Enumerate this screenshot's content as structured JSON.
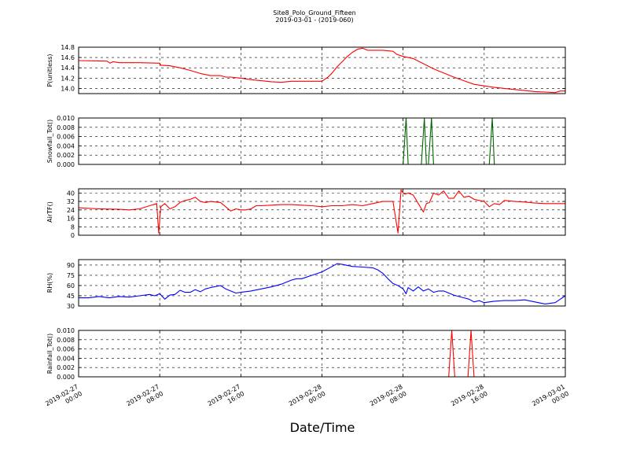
{
  "figure": {
    "title": "Site8_Polo_Ground_Fifteen",
    "subtitle": "2019-03-01 - (2019-060)",
    "xlabel": "Date/Time"
  },
  "chart_data": [
    {
      "type": "line",
      "ylabel": "P(unitless)",
      "ylim": [
        13.9,
        14.8
      ],
      "yticks": [
        "14.0",
        "14.2",
        "14.4",
        "14.6",
        "14.8"
      ],
      "xlim": [
        0,
        48
      ],
      "xticks": [
        "2019-02-27 00:00",
        "2019-02-27 08:00",
        "2019-02-27 16:00",
        "2019-02-28 00:00",
        "2019-02-28 08:00",
        "2019-02-28 16:00",
        "2019-03-01 00:00"
      ],
      "grid": true,
      "series": [
        {
          "color": "#ff0000",
          "x": [
            0,
            2.8,
            3.1,
            3.4,
            4,
            6,
            8,
            8.1,
            9,
            10,
            11,
            12,
            13,
            14,
            14.5,
            15,
            16,
            17,
            18,
            19,
            20,
            21,
            22,
            23,
            24,
            24.6,
            25,
            25.5,
            26,
            26.5,
            27,
            27.5,
            28,
            28.5,
            29,
            30,
            31,
            31.4,
            32,
            32.5,
            33,
            34,
            35,
            36,
            37,
            38,
            39,
            40,
            41,
            42,
            43,
            44,
            45,
            46,
            47,
            47.5,
            48
          ],
          "y": [
            14.54,
            14.53,
            14.49,
            14.52,
            14.5,
            14.5,
            14.49,
            14.45,
            14.44,
            14.4,
            14.35,
            14.29,
            14.25,
            14.25,
            14.22,
            14.22,
            14.2,
            14.17,
            14.15,
            14.13,
            14.12,
            14.14,
            14.14,
            14.14,
            14.14,
            14.22,
            14.3,
            14.42,
            14.52,
            14.62,
            14.7,
            14.76,
            14.78,
            14.74,
            14.74,
            14.74,
            14.72,
            14.66,
            14.62,
            14.6,
            14.58,
            14.48,
            14.38,
            14.3,
            14.22,
            14.15,
            14.08,
            14.05,
            14.02,
            14,
            13.98,
            13.96,
            13.94,
            13.93,
            13.92,
            13.95,
            13.95
          ]
        }
      ]
    },
    {
      "type": "line",
      "ylabel": "Snowfall_Tot()",
      "ylim": [
        0,
        0.01
      ],
      "yticks": [
        "0.000",
        "0.002",
        "0.004",
        "0.006",
        "0.008",
        "0.010"
      ],
      "xlim": [
        0,
        48
      ],
      "xticks": [
        "2019-02-27 00:00",
        "2019-02-27 08:00",
        "2019-02-27 16:00",
        "2019-02-28 00:00",
        "2019-02-28 08:00",
        "2019-02-28 16:00",
        "2019-03-01 00:00"
      ],
      "grid": true,
      "series": [
        {
          "color": "#006400",
          "x": [
            0,
            32,
            32.3,
            32.5,
            33.8,
            34.1,
            34.3,
            34.5,
            34.8,
            35,
            40.5,
            40.8,
            41,
            48
          ],
          "y": [
            0,
            0,
            0.01,
            0,
            0,
            0.01,
            0,
            0,
            0.01,
            0,
            0,
            0.01,
            0,
            0
          ]
        }
      ]
    },
    {
      "type": "line",
      "ylabel": "AirTF()",
      "ylim": [
        0,
        44
      ],
      "yticks": [
        "0",
        "8",
        "16",
        "24",
        "32",
        "40"
      ],
      "xlim": [
        0,
        48
      ],
      "xticks": [
        "2019-02-27 00:00",
        "2019-02-27 08:00",
        "2019-02-27 16:00",
        "2019-02-28 00:00",
        "2019-02-28 08:00",
        "2019-02-28 16:00",
        "2019-03-01 00:00"
      ],
      "grid": true,
      "series": [
        {
          "color": "#ff0000",
          "x": [
            0,
            2,
            4,
            5,
            6,
            7,
            7.7,
            7.9,
            8.1,
            8.5,
            9,
            9.5,
            10,
            10.5,
            11,
            11.5,
            12,
            12.5,
            13,
            14,
            14.5,
            15,
            15.5,
            16,
            16.5,
            17,
            17.5,
            18,
            19,
            20,
            21,
            22,
            23,
            24,
            25,
            26,
            27,
            28,
            29,
            30,
            31,
            31.5,
            31.8,
            32,
            32.2,
            32.5,
            33,
            33.5,
            34,
            34.3,
            34.6,
            35,
            35.5,
            36,
            36.5,
            37,
            37.5,
            38,
            38.5,
            39,
            39.5,
            40,
            40.5,
            41,
            41.5,
            42,
            43,
            44,
            45,
            46,
            47,
            48
          ],
          "y": [
            26,
            25,
            24.5,
            24,
            25,
            28,
            30,
            2,
            27,
            30,
            25,
            27,
            31,
            33,
            34,
            36,
            32,
            31,
            32,
            31,
            27,
            23,
            25,
            24,
            24,
            25,
            28,
            28,
            28.5,
            29,
            29,
            28.5,
            28,
            27,
            28,
            28,
            29,
            28,
            30,
            32,
            32,
            2,
            43,
            40,
            39,
            40,
            38,
            30,
            22,
            30,
            31,
            40,
            38,
            42,
            35,
            35,
            42,
            36,
            37,
            34,
            33,
            32,
            27,
            30,
            29,
            33,
            32,
            31.5,
            30.5,
            30,
            30,
            30
          ]
        }
      ]
    },
    {
      "type": "line",
      "ylabel": "RH(%)",
      "ylim": [
        30,
        98
      ],
      "yticks": [
        "30",
        "45",
        "60",
        "75",
        "90"
      ],
      "xlim": [
        0,
        48
      ],
      "xticks": [
        "2019-02-27 00:00",
        "2019-02-27 08:00",
        "2019-02-27 16:00",
        "2019-02-28 00:00",
        "2019-02-28 08:00",
        "2019-02-28 16:00",
        "2019-03-01 00:00"
      ],
      "grid": true,
      "series": [
        {
          "color": "#0000ff",
          "x": [
            0,
            1,
            2,
            3,
            4,
            5,
            6,
            7,
            7.5,
            8,
            8.5,
            9,
            9.5,
            10,
            10.5,
            11,
            11.5,
            12,
            12.5,
            13,
            14,
            14.5,
            15,
            15.5,
            16,
            17,
            18,
            19,
            20,
            21,
            21.5,
            22,
            23,
            24,
            25,
            25.5,
            26,
            27,
            28,
            29,
            29.5,
            30,
            30.5,
            31,
            31.5,
            32,
            32.3,
            32.5,
            33,
            33.5,
            34,
            34.5,
            35,
            35.5,
            36,
            37,
            38,
            38.5,
            39,
            39.5,
            40,
            41,
            42,
            43,
            44,
            45,
            46,
            47,
            47.5,
            48
          ],
          "y": [
            42,
            42,
            44,
            42,
            44,
            43,
            45,
            47,
            45,
            48,
            40,
            46,
            47,
            53,
            50,
            50,
            54,
            51,
            55,
            57,
            60,
            55,
            52,
            49,
            50,
            52,
            55,
            58,
            62,
            68,
            70,
            70,
            75,
            80,
            88,
            92,
            91,
            88,
            87,
            86,
            83,
            78,
            70,
            63,
            60,
            55,
            48,
            57,
            52,
            58,
            52,
            55,
            50,
            52,
            52,
            46,
            42,
            40,
            36,
            38,
            35,
            37,
            38,
            38,
            39,
            36,
            33,
            35,
            40,
            45
          ]
        }
      ]
    },
    {
      "type": "line",
      "ylabel": "Rainfall_Tot()",
      "ylim": [
        0,
        0.01
      ],
      "yticks": [
        "0.000",
        "0.002",
        "0.004",
        "0.006",
        "0.008",
        "0.010"
      ],
      "xlim": [
        0,
        48
      ],
      "xticks": [
        "2019-02-27 00:00",
        "2019-02-27 08:00",
        "2019-02-27 16:00",
        "2019-02-28 00:00",
        "2019-02-28 08:00",
        "2019-02-28 16:00",
        "2019-03-01 00:00"
      ],
      "grid": true,
      "series": [
        {
          "color": "#ff0000",
          "x": [
            0,
            36.5,
            36.8,
            37.1,
            38.4,
            38.7,
            39,
            48
          ],
          "y": [
            0,
            0,
            0.01,
            0,
            0,
            0.01,
            0,
            0
          ]
        }
      ]
    }
  ]
}
